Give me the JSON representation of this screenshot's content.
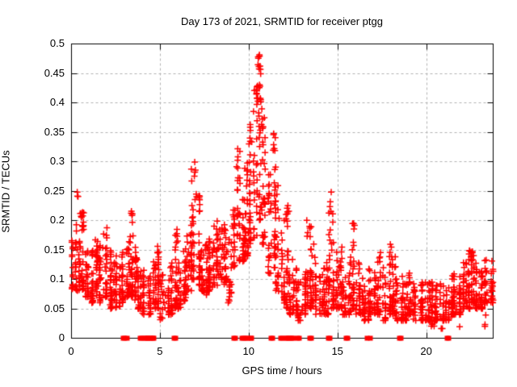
{
  "window": {
    "background": "#ffffff"
  },
  "chart_data": {
    "type": "scatter",
    "title": "Day 173 of 2021, SRMTID for receiver ptgg",
    "xlabel": "GPS time / hours",
    "ylabel": "SRMTID / TECUs",
    "xlim": [
      0,
      23.75
    ],
    "ylim": [
      0,
      0.5
    ],
    "xticks": [
      0,
      5,
      10,
      15,
      20
    ],
    "xtick_labels": [
      "0",
      "5",
      "10",
      "15",
      "20"
    ],
    "yticks": [
      0,
      0.05,
      0.1,
      0.15,
      0.2,
      0.25,
      0.3,
      0.35,
      0.4,
      0.45,
      0.5
    ],
    "ytick_labels": [
      "0",
      "0.05",
      "0.1",
      "0.15",
      "0.2",
      "0.25",
      "0.3",
      "0.35",
      "0.4",
      "0.45",
      "0.5"
    ],
    "grid": true,
    "grid_style": "dashed",
    "grid_color": "#b0b0b0",
    "border_color": "#000000",
    "marker": "plus",
    "marker_color": "#ff0000",
    "peak": {
      "x": 10.55,
      "y": 0.49
    },
    "distribution_bins": {
      "x0": 0,
      "dx": 0.25,
      "columns": [
        "y_min",
        "y_max",
        "n_points"
      ],
      "bins": [
        [
          0.08,
          0.21,
          26
        ],
        [
          0.08,
          0.22,
          26
        ],
        [
          0.08,
          0.215,
          26
        ],
        [
          0.07,
          0.16,
          24
        ],
        [
          0.06,
          0.15,
          24
        ],
        [
          0.07,
          0.17,
          26
        ],
        [
          0.06,
          0.16,
          24
        ],
        [
          0.07,
          0.19,
          26
        ],
        [
          0.05,
          0.15,
          24
        ],
        [
          0.05,
          0.13,
          22
        ],
        [
          0.05,
          0.14,
          24
        ],
        [
          0.06,
          0.15,
          24
        ],
        [
          0.07,
          0.18,
          26
        ],
        [
          0.07,
          0.215,
          28
        ],
        [
          0.06,
          0.16,
          24
        ],
        [
          0.05,
          0.13,
          22
        ],
        [
          0.04,
          0.12,
          20
        ],
        [
          0.04,
          0.115,
          20
        ],
        [
          0.05,
          0.13,
          22
        ],
        [
          0.05,
          0.16,
          24
        ],
        [
          0.03,
          0.11,
          18
        ],
        [
          0.04,
          0.1,
          18
        ],
        [
          0.04,
          0.13,
          20
        ],
        [
          0.05,
          0.185,
          22
        ],
        [
          0.05,
          0.13,
          22
        ],
        [
          0.06,
          0.155,
          24
        ],
        [
          0.08,
          0.19,
          24
        ],
        [
          0.1,
          0.3,
          26
        ],
        [
          0.09,
          0.25,
          26
        ],
        [
          0.08,
          0.18,
          24
        ],
        [
          0.07,
          0.16,
          24
        ],
        [
          0.08,
          0.17,
          24
        ],
        [
          0.09,
          0.2,
          24
        ],
        [
          0.1,
          0.19,
          24
        ],
        [
          0.09,
          0.2,
          24
        ],
        [
          0.06,
          0.17,
          20
        ],
        [
          0.12,
          0.22,
          20
        ],
        [
          0.13,
          0.335,
          24
        ],
        [
          0.13,
          0.24,
          22
        ],
        [
          0.14,
          0.3,
          24
        ],
        [
          0.15,
          0.37,
          26
        ],
        [
          0.17,
          0.43,
          26
        ],
        [
          0.2,
          0.49,
          28
        ],
        [
          0.16,
          0.38,
          26
        ],
        [
          0.11,
          0.28,
          24
        ],
        [
          0.12,
          0.35,
          24
        ],
        [
          0.08,
          0.27,
          22
        ],
        [
          0.06,
          0.2,
          22
        ],
        [
          0.05,
          0.23,
          22
        ],
        [
          0.04,
          0.14,
          22
        ],
        [
          0.04,
          0.12,
          20
        ],
        [
          0.03,
          0.1,
          18
        ],
        [
          0.04,
          0.12,
          22
        ],
        [
          0.05,
          0.205,
          24
        ],
        [
          0.05,
          0.16,
          22
        ],
        [
          0.04,
          0.11,
          20
        ],
        [
          0.04,
          0.12,
          22
        ],
        [
          0.04,
          0.13,
          22
        ],
        [
          0.05,
          0.25,
          24
        ],
        [
          0.05,
          0.15,
          22
        ],
        [
          0.05,
          0.13,
          22
        ],
        [
          0.04,
          0.12,
          20
        ],
        [
          0.04,
          0.14,
          20
        ],
        [
          0.05,
          0.195,
          22
        ],
        [
          0.04,
          0.13,
          20
        ],
        [
          0.04,
          0.11,
          20
        ],
        [
          0.03,
          0.115,
          20
        ],
        [
          0.04,
          0.12,
          20
        ],
        [
          0.04,
          0.125,
          20
        ],
        [
          0.04,
          0.15,
          22
        ],
        [
          0.03,
          0.12,
          20
        ],
        [
          0.04,
          0.16,
          22
        ],
        [
          0.04,
          0.145,
          22
        ],
        [
          0.03,
          0.11,
          20
        ],
        [
          0.03,
          0.11,
          20
        ],
        [
          0.03,
          0.105,
          20
        ],
        [
          0.04,
          0.115,
          20
        ],
        [
          0.03,
          0.1,
          18
        ],
        [
          0.03,
          0.105,
          20
        ],
        [
          0.03,
          0.1,
          18
        ],
        [
          0.03,
          0.1,
          20
        ],
        [
          0.02,
          0.1,
          20
        ],
        [
          0.03,
          0.1,
          20
        ],
        [
          0.03,
          0.11,
          22
        ],
        [
          0.03,
          0.1,
          20
        ],
        [
          0.04,
          0.11,
          22
        ],
        [
          0.04,
          0.11,
          22
        ],
        [
          0.04,
          0.12,
          22
        ],
        [
          0.05,
          0.13,
          24
        ],
        [
          0.05,
          0.15,
          26
        ],
        [
          0.06,
          0.15,
          26
        ],
        [
          0.05,
          0.13,
          24
        ],
        [
          0.05,
          0.12,
          24
        ],
        [
          0.06,
          0.135,
          24
        ],
        [
          0.06,
          0.14,
          22
        ]
      ]
    },
    "spike_clusters": {
      "columns": [
        "x",
        "y_min",
        "y_max",
        "n_points"
      ],
      "clusters": [
        [
          0.32,
          0.24,
          0.265,
          3
        ],
        [
          0.55,
          0.2,
          0.215,
          3
        ],
        [
          3.42,
          0.19,
          0.223,
          4
        ],
        [
          5.95,
          0.16,
          0.186,
          3
        ],
        [
          6.95,
          0.26,
          0.3,
          4
        ],
        [
          7.0,
          0.22,
          0.25,
          3
        ],
        [
          9.35,
          0.28,
          0.335,
          5
        ],
        [
          9.9,
          0.25,
          0.295,
          4
        ],
        [
          10.1,
          0.32,
          0.37,
          5
        ],
        [
          10.45,
          0.38,
          0.435,
          8
        ],
        [
          10.55,
          0.44,
          0.49,
          6
        ],
        [
          10.62,
          0.4,
          0.45,
          5
        ],
        [
          10.8,
          0.3,
          0.38,
          5
        ],
        [
          11.4,
          0.3,
          0.35,
          5
        ],
        [
          12.2,
          0.18,
          0.23,
          4
        ],
        [
          13.45,
          0.17,
          0.205,
          4
        ],
        [
          14.6,
          0.16,
          0.25,
          6
        ],
        [
          15.2,
          0.13,
          0.165,
          3
        ],
        [
          15.9,
          0.15,
          0.195,
          4
        ],
        [
          17.4,
          0.12,
          0.15,
          3
        ],
        [
          18.0,
          0.12,
          0.16,
          3
        ],
        [
          22.55,
          0.13,
          0.155,
          4
        ],
        [
          20.85,
          0.015,
          0.025,
          2
        ],
        [
          21.9,
          0.018,
          0.022,
          1
        ],
        [
          23.3,
          0.02,
          0.045,
          3
        ]
      ]
    },
    "zero_line_marker_x": [
      2.9,
      3.02,
      3.12,
      3.85,
      3.95,
      4.1,
      4.18,
      4.26,
      4.34,
      4.42,
      4.5,
      4.58,
      4.66,
      5.78,
      5.88,
      9.15,
      9.25,
      9.58,
      9.68,
      9.82,
      9.92,
      10.08,
      10.16,
      11.22,
      11.32,
      11.78,
      11.88,
      12.05,
      12.14,
      12.23,
      12.32,
      12.41,
      12.5,
      12.75,
      12.85,
      13.42,
      13.52,
      14.45,
      14.55,
      15.45,
      15.55,
      16.65,
      16.82,
      18.45,
      18.55,
      21.15,
      21.25
    ]
  }
}
